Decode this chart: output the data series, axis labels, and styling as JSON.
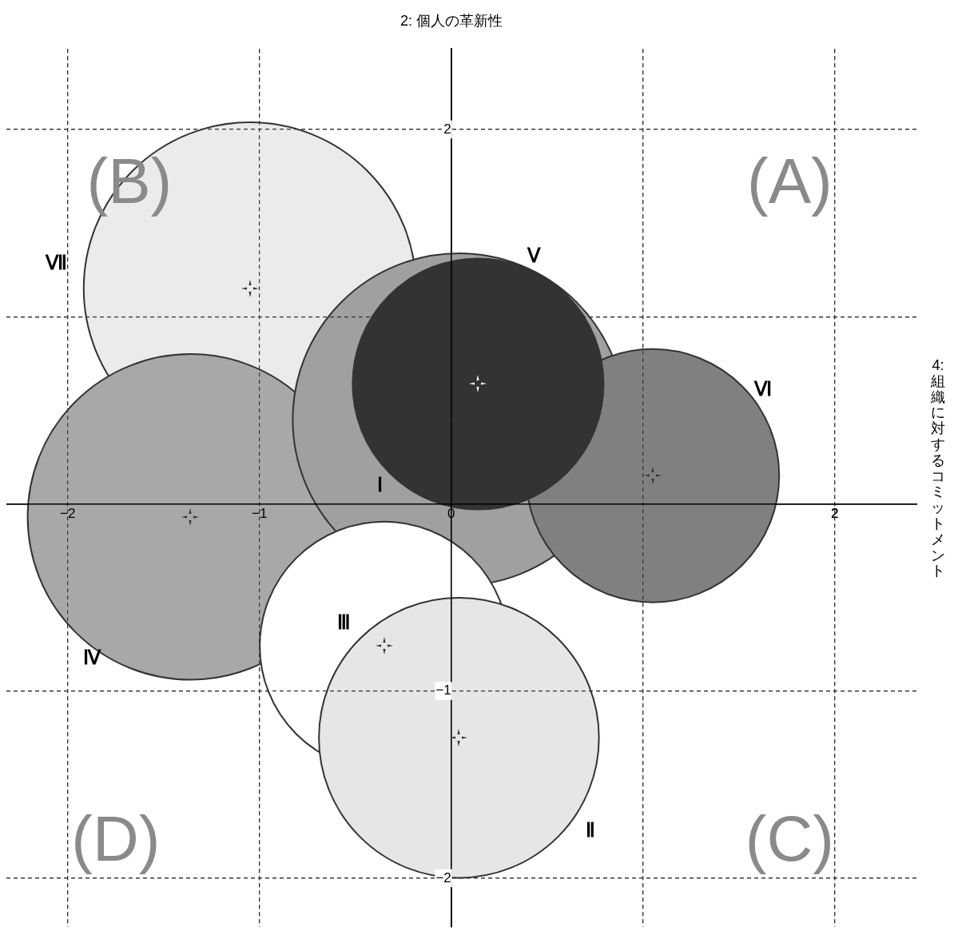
{
  "chart_data": {
    "type": "bubble",
    "ylabel": "2: 個人の革新性",
    "xlabel": "4: 組織に対するコミットメント",
    "annotations": [
      "(A)",
      "(B)",
      "(C)",
      "(D)"
    ],
    "xlim": [
      -2.32,
      2.43
    ],
    "ylim": [
      -2.26,
      2.43
    ],
    "xticks": [
      -2,
      -1,
      0,
      {
        "value": 1,
        "label": null
      },
      2
    ],
    "yticks": [
      -2,
      -1,
      {
        "value": 0,
        "label": null
      },
      {
        "value": 1,
        "label": null
      },
      2
    ],
    "grid": true,
    "legend": false,
    "series": [
      {
        "name": "Ⅶ",
        "color": "#ebebeb",
        "x": [
          -1.05
        ],
        "values": [
          1.15
        ],
        "sizes": [
          1
        ]
      },
      {
        "name": "Ⅳ",
        "color": "#a8a8a8",
        "x": [
          -1.36
        ],
        "values": [
          -0.07
        ],
        "sizes": [
          0.96
        ]
      },
      {
        "name": "Ⅰ",
        "color": "#a0a0a0",
        "x": [
          0.04
        ],
        "values": [
          0.45
        ],
        "sizes": [
          1
        ]
      },
      {
        "name": "Ⅵ",
        "color": "#808080",
        "x": [
          1.05
        ],
        "values": [
          0.15
        ],
        "sizes": [
          0.58
        ]
      },
      {
        "name": "Ⅴ",
        "color": "#333333",
        "x": [
          0.14
        ],
        "values": [
          0.64
        ],
        "sizes": [
          0.57
        ]
      },
      {
        "name": "Ⅲ",
        "color": "#ffffff",
        "x": [
          -0.35
        ],
        "values": [
          -0.76
        ],
        "sizes": [
          0.56
        ]
      },
      {
        "name": "Ⅱ",
        "color": "#e6e6e6",
        "x": [
          0.04
        ],
        "values": [
          -1.25
        ],
        "sizes": [
          0.71
        ]
      }
    ]
  }
}
